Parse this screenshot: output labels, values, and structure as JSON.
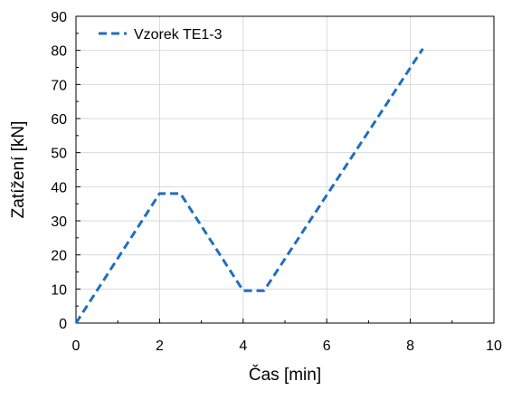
{
  "chart_data": {
    "type": "line",
    "xlabel": "Čas [min]",
    "ylabel": "Zatížení [kN]",
    "xlim": [
      0,
      10
    ],
    "ylim": [
      0,
      90
    ],
    "x_ticks": [
      0,
      2,
      4,
      6,
      8,
      10
    ],
    "y_ticks": [
      0,
      10,
      20,
      30,
      40,
      50,
      60,
      70,
      80,
      90
    ],
    "grid": true,
    "legend_position": "top-left",
    "series": [
      {
        "name": "Vzorek TE1-3",
        "color": "#1f6fbf",
        "line_style": "dashed",
        "x": [
          0,
          2.0,
          2.5,
          4.0,
          4.5,
          8.3
        ],
        "y": [
          0,
          38,
          38,
          9.5,
          9.5,
          80.5
        ]
      }
    ]
  }
}
